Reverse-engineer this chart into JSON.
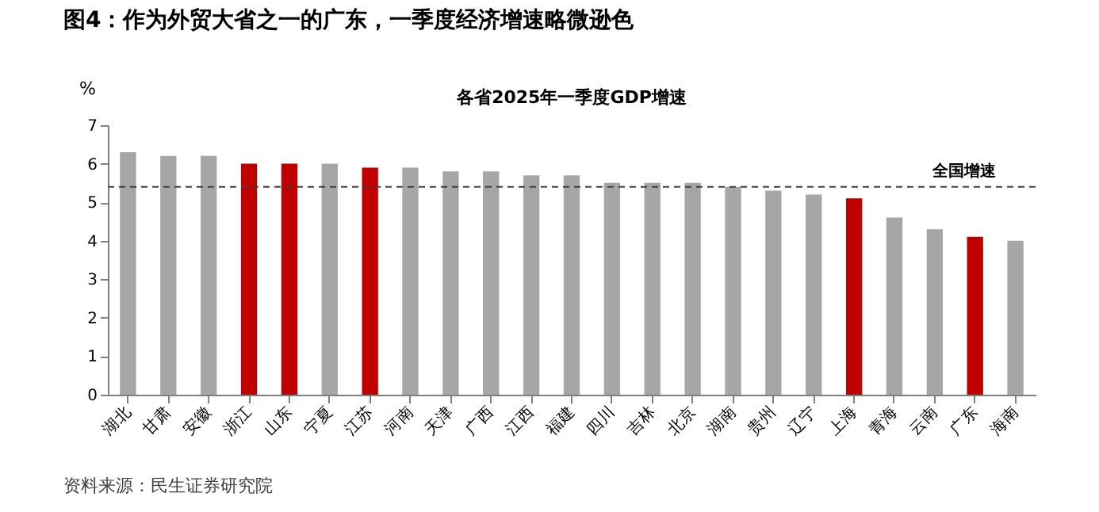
{
  "chart_data": {
    "type": "bar",
    "title": "图4：作为外贸大省之一的广东，一季度经济增速略微逊色",
    "subtitle": "各省2025年一季度GDP增速",
    "ylabel": "%",
    "categories": [
      "湖北",
      "甘肃",
      "安徽",
      "浙江",
      "山东",
      "宁夏",
      "江苏",
      "河南",
      "天津",
      "广西",
      "江西",
      "福建",
      "四川",
      "吉林",
      "北京",
      "湖南",
      "贵州",
      "辽宁",
      "上海",
      "青海",
      "云南",
      "广东",
      "海南"
    ],
    "values": [
      6.3,
      6.2,
      6.2,
      6.0,
      6.0,
      6.0,
      5.9,
      5.9,
      5.8,
      5.8,
      5.7,
      5.7,
      5.5,
      5.5,
      5.5,
      5.4,
      5.3,
      5.2,
      5.1,
      4.6,
      4.3,
      4.1,
      4.0
    ],
    "colors": [
      "#a6a6a6",
      "#a6a6a6",
      "#a6a6a6",
      "#c00000",
      "#c00000",
      "#a6a6a6",
      "#c00000",
      "#a6a6a6",
      "#a6a6a6",
      "#a6a6a6",
      "#a6a6a6",
      "#a6a6a6",
      "#a6a6a6",
      "#a6a6a6",
      "#a6a6a6",
      "#a6a6a6",
      "#a6a6a6",
      "#a6a6a6",
      "#c00000",
      "#a6a6a6",
      "#a6a6a6",
      "#c00000",
      "#a6a6a6"
    ],
    "ylim": [
      0,
      7
    ],
    "yticks": [
      0,
      1,
      2,
      3,
      4,
      5,
      6,
      7
    ],
    "grid": false,
    "ref_lines": [
      {
        "axis": "y",
        "value": 5.4,
        "label": "全国增速",
        "color": "#404040",
        "line_style": "dashed"
      }
    ],
    "annotations": [
      "资料来源：民生证券研究院"
    ]
  }
}
